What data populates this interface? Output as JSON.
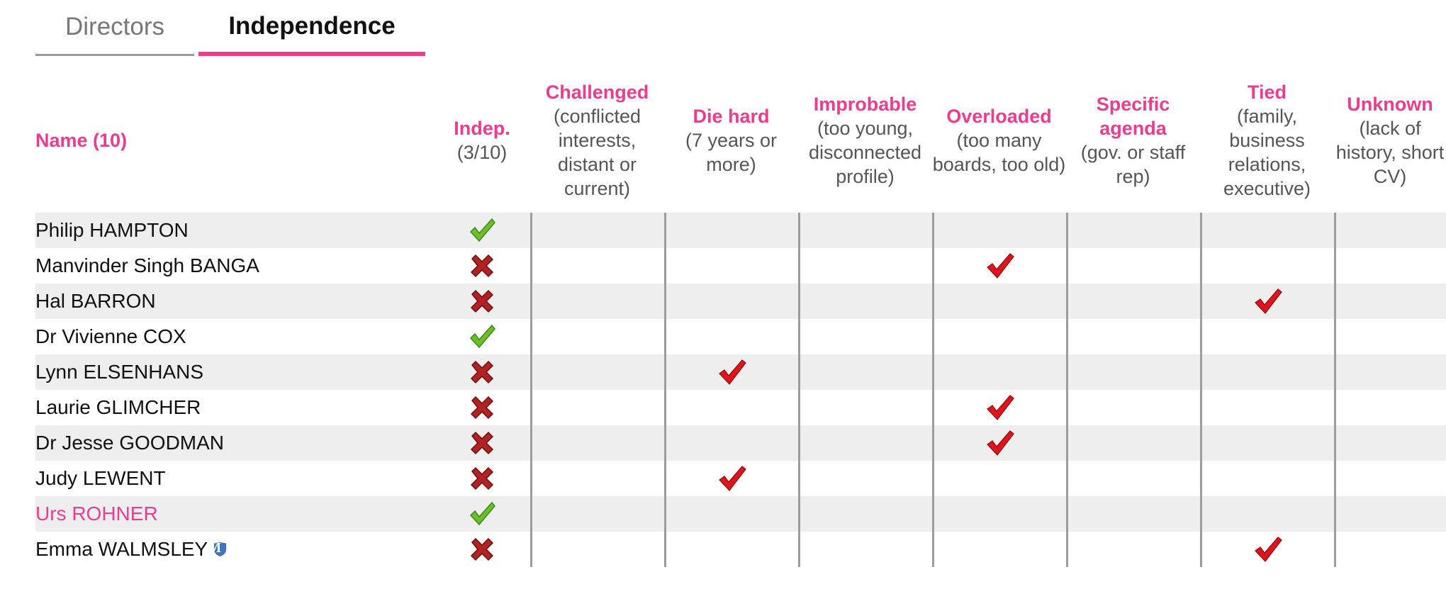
{
  "tabs": [
    {
      "label": "Directors",
      "active": false
    },
    {
      "label": "Independence",
      "active": true
    }
  ],
  "colors": {
    "accent": "#ea3d8f",
    "check_green": "#6abf2a",
    "cross_red": "#b22222",
    "check_red": "#e0151b"
  },
  "headers": {
    "name": {
      "title": "Name (10)"
    },
    "indep": {
      "title": "Indep.",
      "sub": "(3/10)"
    },
    "challenged": {
      "title": "Challenged",
      "sub": "(conflicted interests, distant or current)"
    },
    "diehard": {
      "title": "Die hard",
      "sub": "(7 years or more)"
    },
    "improbable": {
      "title": "Improbable",
      "sub": "(too young, disconnected profile)"
    },
    "overloaded": {
      "title": "Overloaded",
      "sub": "(too many boards, too old)"
    },
    "specific": {
      "title": "Specific agenda",
      "sub": "(gov. or staff rep)"
    },
    "tied": {
      "title": "Tied",
      "sub": "(family, business relations, executive)"
    },
    "unknown": {
      "title": "Unknown",
      "sub": "(lack of history, short CV)"
    }
  },
  "rows": [
    {
      "name": "Philip HAMPTON",
      "indep": true,
      "flags": {
        "overloaded": false,
        "tied": false,
        "diehard": false
      }
    },
    {
      "name": "Manvinder Singh BANGA",
      "indep": false,
      "flags": {
        "overloaded": true
      }
    },
    {
      "name": "Hal BARRON",
      "indep": false,
      "flags": {
        "tied": true
      }
    },
    {
      "name": "Dr Vivienne COX",
      "indep": true,
      "flags": {}
    },
    {
      "name": "Lynn ELSENHANS",
      "indep": false,
      "flags": {
        "diehard": true
      }
    },
    {
      "name": "Laurie GLIMCHER",
      "indep": false,
      "flags": {
        "overloaded": true
      }
    },
    {
      "name": "Dr Jesse GOODMAN",
      "indep": false,
      "flags": {
        "overloaded": true
      }
    },
    {
      "name": "Judy LEWENT",
      "indep": false,
      "flags": {
        "diehard": true
      }
    },
    {
      "name": "Urs ROHNER",
      "indep": true,
      "flags": {},
      "linked": true
    },
    {
      "name": "Emma WALMSLEY",
      "indep": false,
      "flags": {
        "tied": true
      },
      "shield": "M"
    }
  ]
}
